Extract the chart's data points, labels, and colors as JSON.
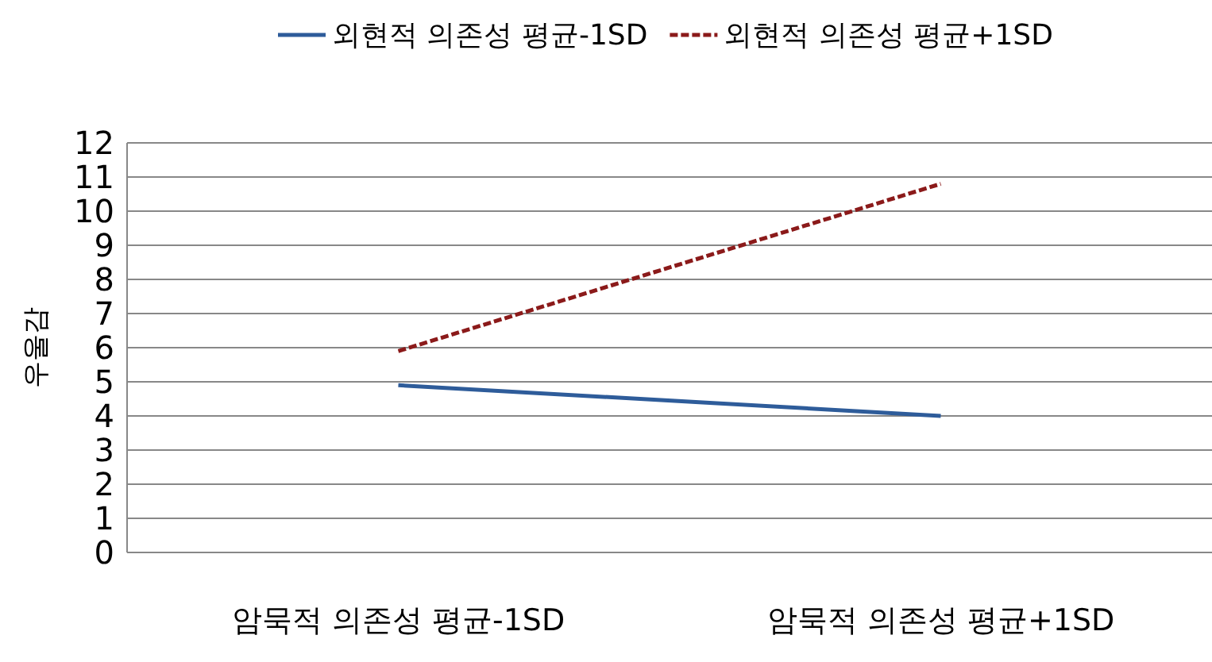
{
  "chart_data": {
    "type": "line",
    "ylabel": "우울감",
    "categories": [
      "암묵적 의존성 평균-1SD",
      "암묵적 의존성 평균+1SD"
    ],
    "series": [
      {
        "name": "외현적 의존성 평균-1SD",
        "color": "#2e5c9a",
        "values": [
          4.9,
          4.0
        ],
        "line_style": "solid"
      },
      {
        "name": "외현적 의존성 평균+1SD",
        "color": "#8b1a1a",
        "values": [
          5.9,
          10.8
        ],
        "line_style": "dashed"
      }
    ],
    "ylim": [
      0,
      12
    ],
    "yticks": [
      0,
      1,
      2,
      3,
      4,
      5,
      6,
      7,
      8,
      9,
      10,
      11,
      12
    ],
    "grid": "y",
    "legend": "top",
    "marker": "none"
  }
}
